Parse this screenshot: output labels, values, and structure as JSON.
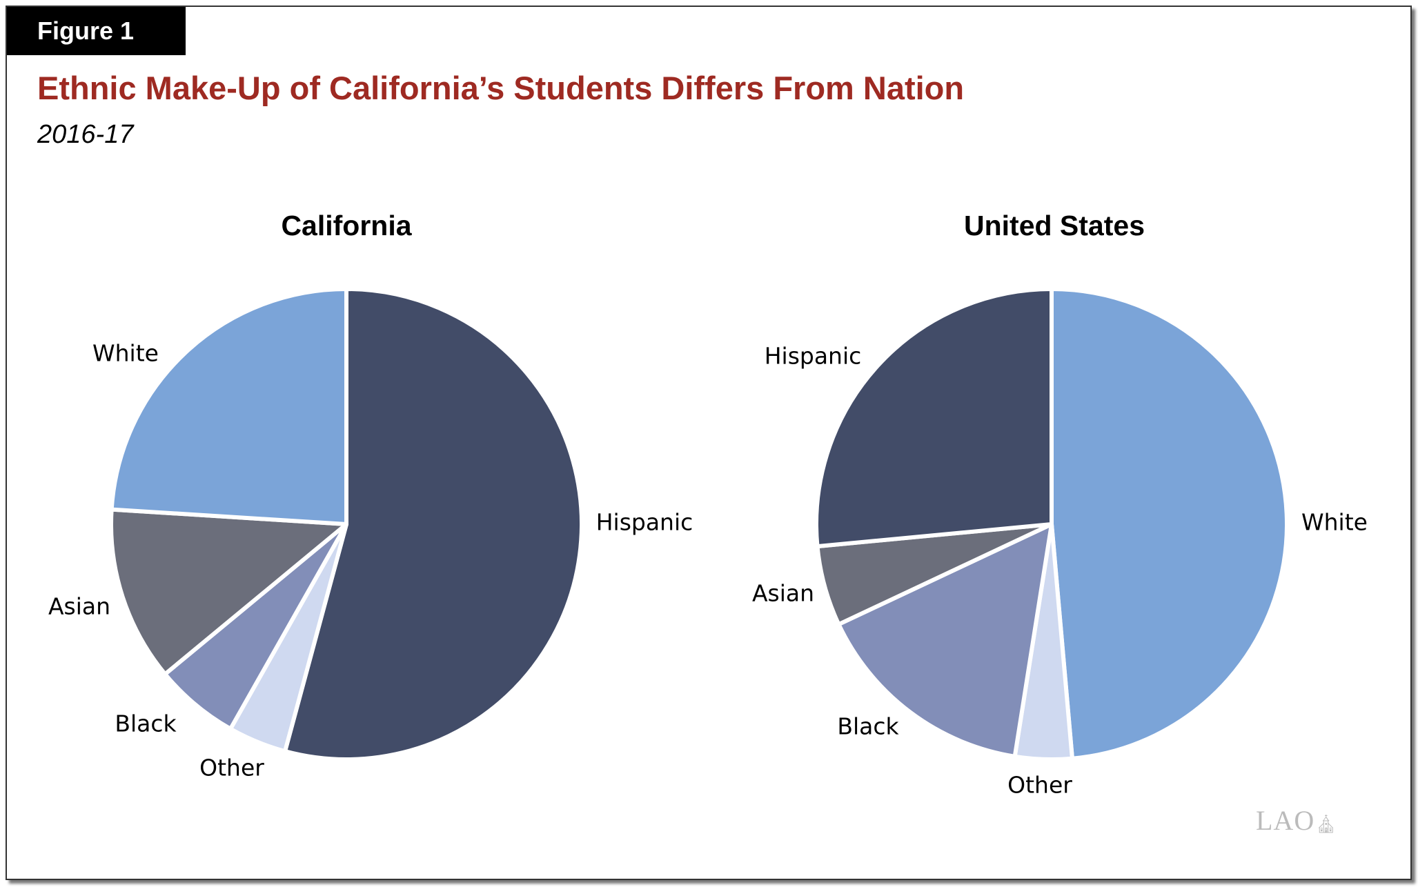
{
  "figure_label": "Figure 1",
  "logo_text": "LAO",
  "chart_data": [
    {
      "type": "pie",
      "title": "California",
      "suptitle": "Ethnic Make-Up of California’s Students Differs From Nation",
      "subtitle": "2016-17",
      "slices": [
        {
          "label": "Hispanic",
          "value": 54.2,
          "color": "#424c68"
        },
        {
          "label": "Other",
          "value": 4.0,
          "color": "#cfd9f0"
        },
        {
          "label": "Black",
          "value": 5.8,
          "color": "#828eb8"
        },
        {
          "label": "Asian",
          "value": 12.0,
          "color": "#6b6e7b"
        },
        {
          "label": "White",
          "value": 24.0,
          "color": "#7ba4d8"
        }
      ]
    },
    {
      "type": "pie",
      "title": "United States",
      "slices": [
        {
          "label": "White",
          "value": 48.6,
          "color": "#7ba4d8"
        },
        {
          "label": "Other",
          "value": 3.9,
          "color": "#cfd9f0"
        },
        {
          "label": "Black",
          "value": 15.5,
          "color": "#828eb8"
        },
        {
          "label": "Asian",
          "value": 5.5,
          "color": "#6b6e7b"
        },
        {
          "label": "Hispanic",
          "value": 26.5,
          "color": "#424c68"
        }
      ]
    }
  ]
}
